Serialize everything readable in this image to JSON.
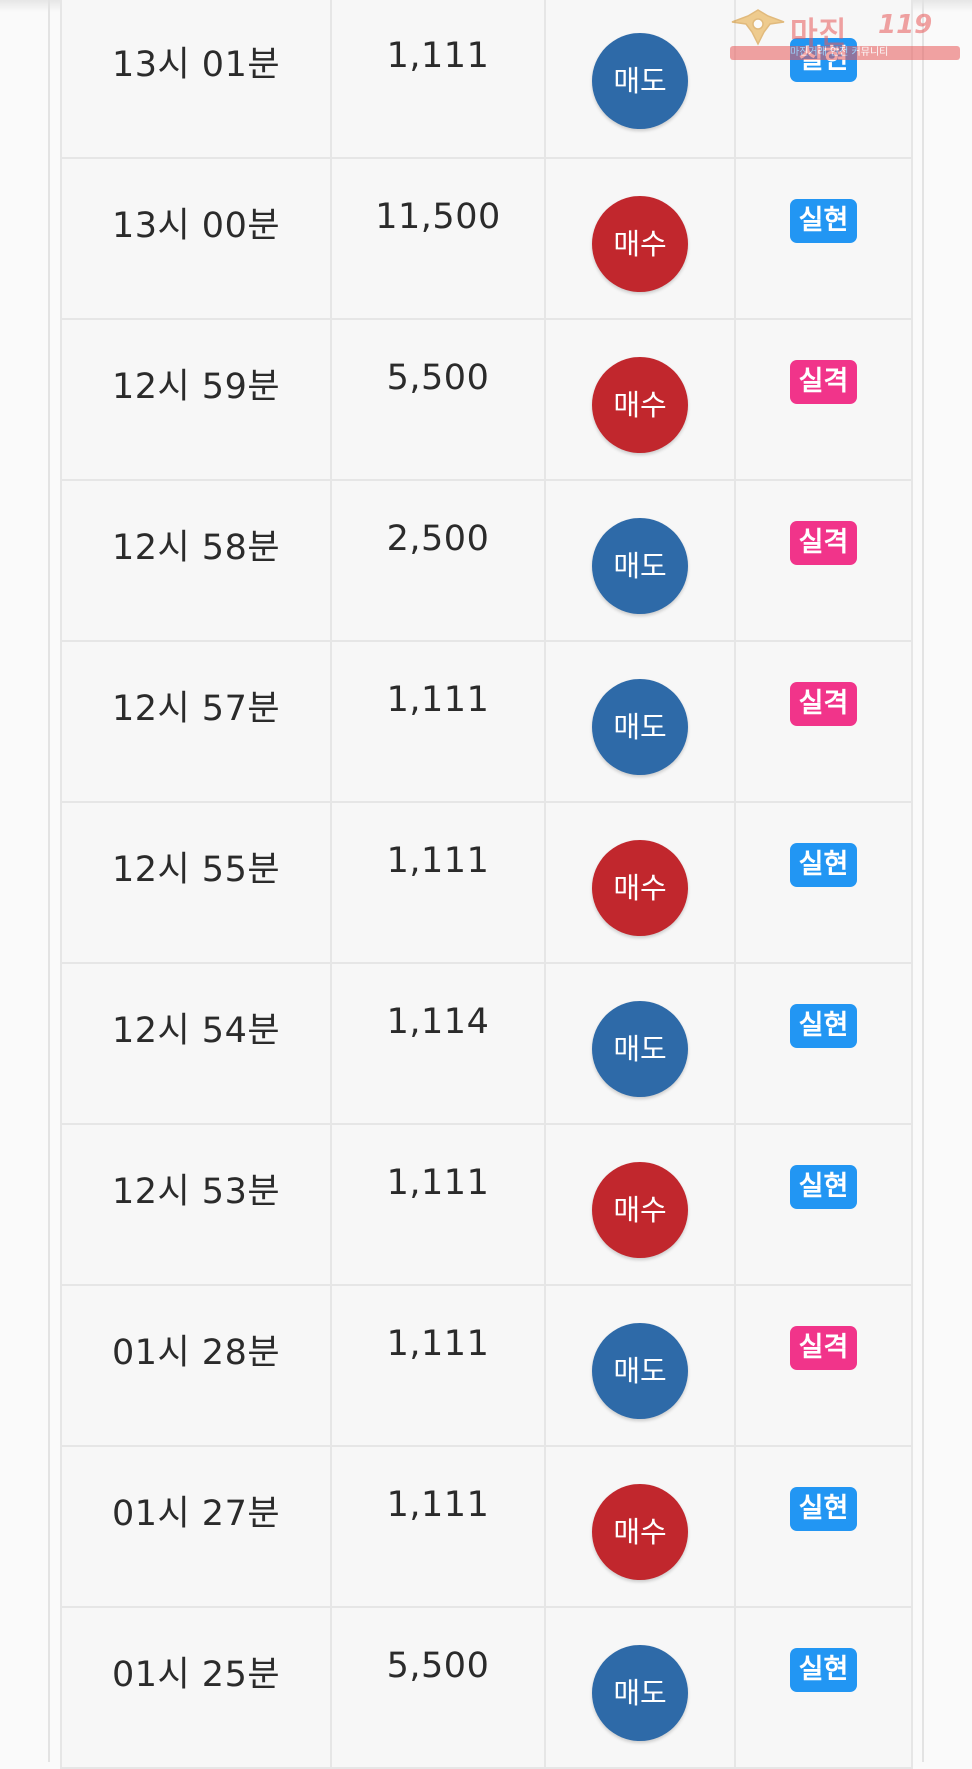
{
  "table": {
    "rows": [
      {
        "time": "13시 01분",
        "amount": "1,111",
        "direction": "매도",
        "direction_type": "sell",
        "result": "실현",
        "result_type": "hit"
      },
      {
        "time": "13시 00분",
        "amount": "11,500",
        "direction": "매수",
        "direction_type": "buy",
        "result": "실현",
        "result_type": "hit"
      },
      {
        "time": "12시 59분",
        "amount": "5,500",
        "direction": "매수",
        "direction_type": "buy",
        "result": "실격",
        "result_type": "miss"
      },
      {
        "time": "12시 58분",
        "amount": "2,500",
        "direction": "매도",
        "direction_type": "sell",
        "result": "실격",
        "result_type": "miss"
      },
      {
        "time": "12시 57분",
        "amount": "1,111",
        "direction": "매도",
        "direction_type": "sell",
        "result": "실격",
        "result_type": "miss"
      },
      {
        "time": "12시 55분",
        "amount": "1,111",
        "direction": "매수",
        "direction_type": "buy",
        "result": "실현",
        "result_type": "hit"
      },
      {
        "time": "12시 54분",
        "amount": "1,114",
        "direction": "매도",
        "direction_type": "sell",
        "result": "실현",
        "result_type": "hit"
      },
      {
        "time": "12시 53분",
        "amount": "1,111",
        "direction": "매수",
        "direction_type": "buy",
        "result": "실현",
        "result_type": "hit"
      },
      {
        "time": "01시 28분",
        "amount": "1,111",
        "direction": "매도",
        "direction_type": "sell",
        "result": "실격",
        "result_type": "miss"
      },
      {
        "time": "01시 27분",
        "amount": "1,111",
        "direction": "매수",
        "direction_type": "buy",
        "result": "실현",
        "result_type": "hit"
      },
      {
        "time": "01시 25분",
        "amount": "5,500",
        "direction": "매도",
        "direction_type": "sell",
        "result": "실현",
        "result_type": "hit"
      }
    ]
  },
  "watermark": {
    "title": "마진",
    "number": "119",
    "subtitle": "마진거래 안전 커뮤니티"
  },
  "colors": {
    "sell": "#2e6aa8",
    "buy": "#c1272d",
    "hit": "#2296f3",
    "miss": "#f1348a"
  }
}
